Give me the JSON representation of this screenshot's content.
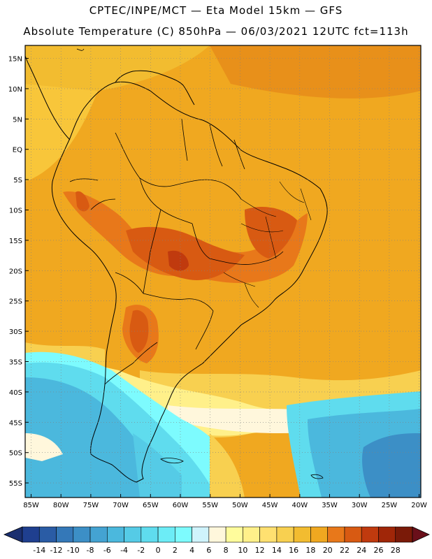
{
  "header": {
    "line1": "CPTEC/INPE/MCT —  Eta Model 15km — GFS",
    "line2": "Absolute Temperature (C) 850hPa — 06/03/2021 12UTC fct=113h"
  },
  "map": {
    "lat_labels": [
      "15N",
      "10N",
      "5N",
      "EQ",
      "5S",
      "10S",
      "15S",
      "20S",
      "25S",
      "30S",
      "35S",
      "40S",
      "45S",
      "50S",
      "55S"
    ],
    "lon_labels": [
      "85W",
      "80W",
      "75W",
      "70W",
      "65W",
      "60W",
      "55W",
      "50W",
      "45W",
      "40W",
      "35W",
      "30W",
      "25W",
      "20W"
    ]
  },
  "colorbar": {
    "labels": [
      "-14",
      "-12",
      "-10",
      "-8",
      "-6",
      "-4",
      "-2",
      "0",
      "2",
      "4",
      "6",
      "8",
      "10",
      "12",
      "14",
      "16",
      "18",
      "20",
      "22",
      "24",
      "26",
      "28"
    ],
    "colors": [
      "#1f3f8f",
      "#2a5ca5",
      "#3478b8",
      "#3c8fc6",
      "#44a3d2",
      "#4bb8dd",
      "#55cbe6",
      "#5fdcee",
      "#6cecf6",
      "#7dfbfe",
      "#cff3fc",
      "#fff7dc",
      "#fffc9c",
      "#fff08a",
      "#ffe070",
      "#f8d050",
      "#f2bc30",
      "#f0a820",
      "#e8781a",
      "#d85a12",
      "#c03a0e",
      "#a02608",
      "#7a1a08"
    ],
    "under_color": "#1a2f70",
    "over_color": "#6a0f1a"
  }
}
